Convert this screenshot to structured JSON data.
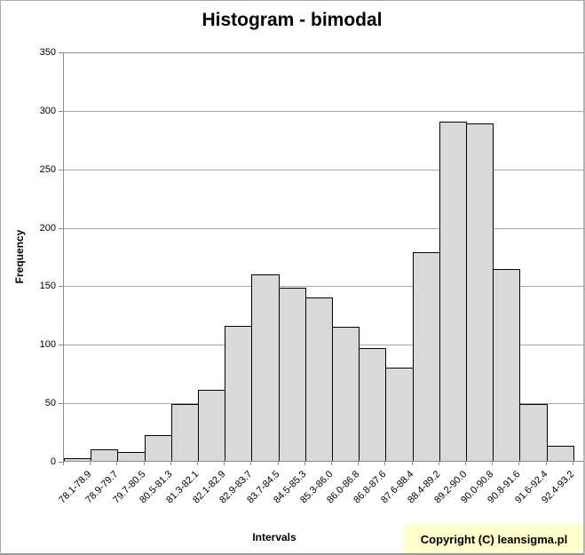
{
  "title": "Histogram - bimodal",
  "y_axis": {
    "label": "Frequency"
  },
  "x_axis": {
    "label": "Intervals"
  },
  "footer": {
    "copyright": "Copyright (C) leansigma.pl"
  },
  "colors": {
    "bar_fill": "#D9D9D9",
    "bar_border": "#000000",
    "gridline": "#A6A6A6",
    "axis": "#8C8C8C",
    "copyright_bg": "#FFFFCC",
    "text": "#000000"
  },
  "chart_data": {
    "type": "bar",
    "title": "Histogram - bimodal",
    "xlabel": "Intervals",
    "ylabel": "Frequency",
    "ylim": [
      0,
      350
    ],
    "ytick_step": 50,
    "grid": true,
    "legend": false,
    "categories": [
      "78.1-78.9",
      "78.9-79.7",
      "79.7-80.5",
      "80.5-81.3",
      "81.3-82.1",
      "82.1-82.9",
      "82.9-83.7",
      "83.7-84.5",
      "84.5-85.3",
      "85.3-86.0",
      "86.0-86.8",
      "86.8-87.6",
      "87.6-88.4",
      "88.4-89.2",
      "89.2-90.0",
      "90.0-90.8",
      "90.8-91.6",
      "91.6-92.4",
      "92.4-93.2"
    ],
    "values": [
      2,
      10,
      8,
      22,
      49,
      61,
      116,
      160,
      149,
      140,
      115,
      97,
      80,
      179,
      291,
      290,
      165,
      49,
      13
    ]
  }
}
